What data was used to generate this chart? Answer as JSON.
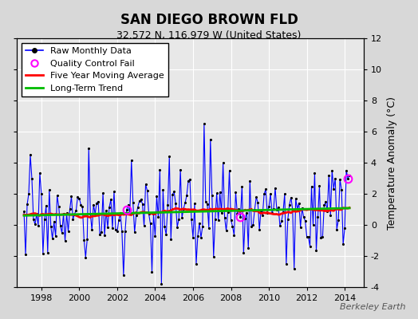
{
  "title": "SAN DIEGO BROWN FLD",
  "subtitle": "32.572 N, 116.979 W (United States)",
  "ylabel": "Temperature Anomaly (°C)",
  "watermark": "Berkeley Earth",
  "ylim": [
    -4,
    12
  ],
  "yticks": [
    -4,
    -2,
    0,
    2,
    4,
    6,
    8,
    10,
    12
  ],
  "xlim_start": 1996.7,
  "xlim_end": 2015.0,
  "xticks": [
    1998,
    2000,
    2002,
    2004,
    2006,
    2008,
    2010,
    2012,
    2014
  ],
  "raw_color": "#0000ff",
  "moving_avg_color": "#ff0000",
  "trend_color": "#00bb00",
  "qc_fail_color": "#ff00ff",
  "background_color": "#d8d8d8",
  "plot_bg_color": "#e8e8e8",
  "grid_color": "#ffffff",
  "title_fontsize": 12,
  "subtitle_fontsize": 9,
  "ylabel_fontsize": 9,
  "tick_fontsize": 8,
  "legend_fontsize": 8,
  "watermark_fontsize": 8
}
